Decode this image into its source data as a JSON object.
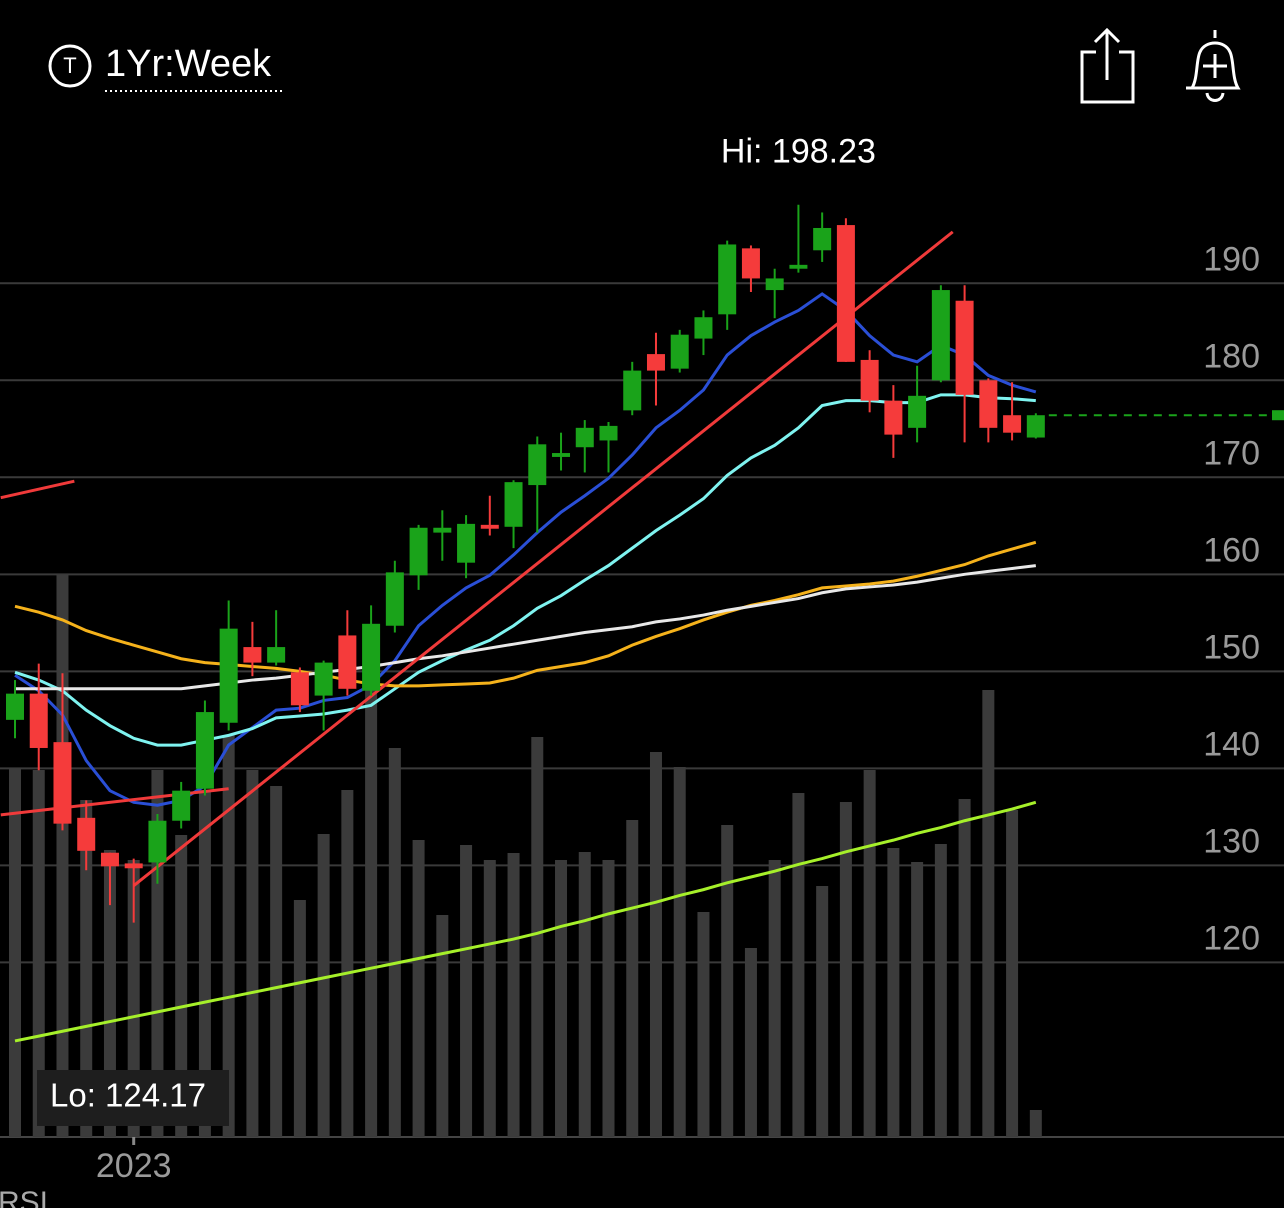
{
  "header": {
    "timeframe": "1Yr:Week"
  },
  "indicator_label": "RSI",
  "chart_data": {
    "type": "candlestick",
    "ylim": [
      102,
      219.2
    ],
    "yticks": [
      120,
      130,
      140,
      150,
      160,
      170,
      180,
      190
    ],
    "grid": true,
    "up_color": "#1aa31a",
    "down_color": "#f53b3b",
    "x_labels": [
      {
        "index": 5,
        "label": "2023"
      }
    ],
    "hi": {
      "value": 198.23,
      "label": "Hi: 198.23",
      "index": 33
    },
    "lo": {
      "value": 124.17,
      "label": "Lo: 124.17",
      "index": 5
    },
    "last_price": 176.4,
    "ohlc": {
      "open": [
        145.0,
        147.7,
        142.7,
        134.9,
        131.3,
        130.2,
        130.3,
        134.6,
        137.9,
        144.7,
        152.5,
        150.9,
        149.9,
        147.5,
        153.7,
        148.0,
        154.7,
        159.9,
        164.3,
        161.2,
        165.1,
        164.9,
        169.2,
        172.1,
        173.1,
        173.8,
        176.9,
        182.7,
        181.2,
        184.3,
        186.8,
        193.6,
        189.3,
        191.5,
        193.4,
        196.0,
        182.1,
        177.9,
        175.1,
        180.0,
        188.2,
        180.0,
        176.4,
        174.1
      ],
      "high": [
        149.1,
        150.8,
        149.8,
        136.7,
        131.3,
        130.7,
        135.3,
        138.6,
        147.0,
        157.3,
        155.1,
        156.3,
        150.4,
        151.1,
        156.3,
        156.8,
        161.4,
        165.1,
        166.6,
        166.1,
        168.1,
        169.7,
        174.2,
        174.6,
        175.9,
        175.7,
        181.9,
        184.9,
        185.2,
        187.2,
        194.4,
        193.9,
        191.5,
        198.1,
        197.3,
        196.7,
        183.1,
        179.5,
        181.5,
        189.8,
        189.8,
        180.2,
        179.8,
        176.6
      ],
      "low": [
        143.1,
        139.8,
        133.6,
        129.5,
        125.9,
        124.1,
        128.1,
        133.8,
        137.2,
        143.9,
        149.5,
        150.6,
        145.8,
        143.9,
        147.5,
        147.5,
        154.0,
        158.4,
        161.4,
        159.6,
        164.0,
        162.7,
        164.3,
        170.7,
        170.5,
        170.5,
        176.4,
        177.4,
        180.8,
        182.6,
        185.2,
        189.1,
        186.4,
        191.1,
        192.2,
        181.9,
        176.7,
        172.0,
        173.6,
        179.8,
        173.6,
        173.6,
        173.8,
        174.0
      ],
      "close": [
        147.7,
        142.1,
        134.3,
        131.5,
        129.9,
        129.7,
        134.6,
        137.7,
        145.8,
        154.4,
        150.9,
        152.5,
        146.5,
        150.9,
        148.2,
        154.9,
        160.2,
        164.8,
        164.8,
        165.2,
        164.7,
        169.5,
        173.4,
        172.5,
        175.1,
        175.3,
        181.0,
        181.0,
        184.7,
        186.5,
        194.0,
        190.5,
        190.5,
        191.9,
        195.7,
        181.9,
        177.9,
        174.4,
        178.4,
        189.3,
        178.5,
        175.1,
        174.6,
        176.4
      ]
    },
    "volume": {
      "color": "#3b3b3b",
      "lim": [
        0,
        227.4
      ],
      "values": [
        73.8,
        73.4,
        112.4,
        67.4,
        57.4,
        55.4,
        73.4,
        60.4,
        69.4,
        80.4,
        73.4,
        70.2,
        47.4,
        60.6,
        69.4,
        91.4,
        77.8,
        59.4,
        44.4,
        58.4,
        55.4,
        56.8,
        80,
        55.4,
        57,
        55.4,
        63.4,
        77,
        74,
        45,
        62.4,
        37.8,
        55.4,
        68.8,
        50.2,
        67,
        73.4,
        57.8,
        55,
        58.6,
        67.6,
        89.4,
        65.4,
        5.4
      ]
    },
    "moving_averages": [
      {
        "color": "#2a4fd6",
        "values": [
          149.6,
          148.0,
          145.5,
          140.8,
          137.7,
          136.5,
          136.2,
          136.7,
          138.2,
          142.4,
          144.2,
          146.0,
          146.2,
          147.0,
          147.3,
          148.6,
          151.1,
          154.7,
          156.8,
          158.6,
          159.9,
          162.0,
          164.3,
          166.4,
          168.1,
          169.9,
          172.3,
          175.1,
          176.9,
          179.0,
          182.6,
          184.6,
          186.0,
          187.2,
          188.9,
          187.2,
          184.6,
          182.6,
          181.9,
          183.6,
          182.6,
          180.5,
          179.5,
          178.8
        ]
      },
      {
        "color": "#7ff3f0",
        "values": [
          149.9,
          149.1,
          148.0,
          146.0,
          144.4,
          143.1,
          142.4,
          142.4,
          142.9,
          143.4,
          144.1,
          145.2,
          145.4,
          145.6,
          146.0,
          146.5,
          148.2,
          149.9,
          151.1,
          152.2,
          153.2,
          154.7,
          156.5,
          157.8,
          159.4,
          160.9,
          162.7,
          164.5,
          166.1,
          167.8,
          170.2,
          172.0,
          173.3,
          175.1,
          177.4,
          177.9,
          177.9,
          177.7,
          177.7,
          178.5,
          178.5,
          178.2,
          178.1,
          177.9
        ]
      },
      {
        "color": "#f5b21b",
        "values": [
          156.7,
          156.1,
          155.3,
          154.2,
          153.4,
          152.7,
          152.0,
          151.3,
          150.9,
          150.7,
          150.5,
          150.3,
          150.0,
          149.6,
          149.1,
          148.7,
          148.5,
          148.5,
          148.6,
          148.7,
          148.8,
          149.3,
          150.1,
          150.5,
          150.9,
          151.6,
          152.7,
          153.6,
          154.4,
          155.3,
          156.1,
          156.8,
          157.3,
          157.9,
          158.6,
          158.8,
          159.0,
          159.3,
          159.8,
          160.4,
          161.0,
          161.9,
          162.6,
          163.3
        ]
      },
      {
        "color": "#e8e8e8",
        "values": [
          148.2,
          148.2,
          148.2,
          148.2,
          148.2,
          148.2,
          148.2,
          148.2,
          148.5,
          148.8,
          149.1,
          149.3,
          149.6,
          149.9,
          150.2,
          150.5,
          150.9,
          151.3,
          151.6,
          152.0,
          152.4,
          152.8,
          153.2,
          153.6,
          154.0,
          154.3,
          154.6,
          155.1,
          155.4,
          155.8,
          156.3,
          156.7,
          157.1,
          157.5,
          158.1,
          158.5,
          158.7,
          158.9,
          159.2,
          159.6,
          160.0,
          160.3,
          160.6,
          160.9
        ]
      },
      {
        "color": "#a6f02a",
        "values": [
          111.9,
          112.4,
          112.9,
          113.4,
          113.9,
          114.4,
          114.9,
          115.4,
          115.9,
          116.4,
          116.9,
          117.4,
          117.9,
          118.4,
          118.9,
          119.4,
          119.9,
          120.4,
          120.9,
          121.4,
          121.9,
          122.4,
          123.0,
          123.7,
          124.3,
          125.0,
          125.6,
          126.2,
          126.9,
          127.5,
          128.2,
          128.8,
          129.4,
          130.1,
          130.7,
          131.4,
          132.0,
          132.6,
          133.3,
          133.9,
          134.6,
          135.2,
          135.8,
          136.5
        ]
      }
    ],
    "trendlines": [
      {
        "color": "#f03a3a",
        "x": [
          -0.6,
          2.5
        ],
        "y": [
          167.9,
          169.6
        ]
      },
      {
        "color": "#f03a3a",
        "x": [
          -0.6,
          9.0
        ],
        "y": [
          135.2,
          137.9
        ]
      },
      {
        "color": "#f03a3a",
        "x": [
          5.0,
          39.5
        ],
        "y": [
          127.9,
          195.3
        ]
      }
    ]
  }
}
